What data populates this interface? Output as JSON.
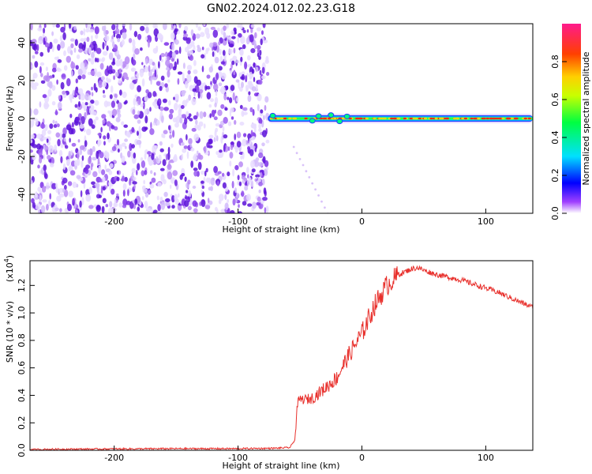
{
  "title": "GN02.2024.012.02.23.G18",
  "chart_data": [
    {
      "type": "heatmap",
      "xlabel": "Height of straight line (km)",
      "ylabel": "Frequency (Hz)",
      "xlim": [
        -268,
        138
      ],
      "ylim": [
        -50,
        50
      ],
      "x_ticks": [
        {
          "v": -200,
          "label": "-200"
        },
        {
          "v": -100,
          "label": "-100"
        },
        {
          "v": 0,
          "label": "0"
        },
        {
          "v": 100,
          "label": "100"
        }
      ],
      "y_ticks": [
        {
          "v": 40,
          "label": "40"
        },
        {
          "v": 20,
          "label": "20"
        },
        {
          "v": 0,
          "label": "0"
        },
        {
          "v": -20,
          "label": "-20"
        },
        {
          "v": -40,
          "label": "-40"
        }
      ],
      "noise_region_x": [
        -268,
        -76
      ],
      "signal_band": {
        "x_start": -76,
        "x_end": 138,
        "frequency": 0
      },
      "colorbar": {
        "label": "Normalized spectral amplitude",
        "range": [
          0,
          1
        ],
        "ticks": [
          {
            "v": 0.0,
            "label": "0.0"
          },
          {
            "v": 0.2,
            "label": "0.2"
          },
          {
            "v": 0.4,
            "label": "0.4"
          },
          {
            "v": 0.6,
            "label": "0.6"
          },
          {
            "v": 0.8,
            "label": "0.8"
          }
        ],
        "colors": [
          "#ffffff",
          "#8a2be2",
          "#0000ff",
          "#00ffff",
          "#00ff00",
          "#ffff00",
          "#ff8000",
          "#ff0000",
          "#ff0080"
        ]
      }
    },
    {
      "type": "line",
      "xlabel": "Height of straight line (km)",
      "ylabel": "SNR (10 * v/v)",
      "multiplier_label": "(x10",
      "multiplier_exp": "4",
      "xlim": [
        -268,
        138
      ],
      "ylim": [
        0,
        1.38
      ],
      "color": "#e8302c",
      "x_ticks": [
        {
          "v": -200,
          "label": "-200"
        },
        {
          "v": -100,
          "label": "-100"
        },
        {
          "v": 0,
          "label": "0"
        },
        {
          "v": 100,
          "label": "100"
        }
      ],
      "y_ticks": [
        {
          "v": 0.0,
          "label": "0.0"
        },
        {
          "v": 0.2,
          "label": "0.2"
        },
        {
          "v": 0.4,
          "label": "0.4"
        },
        {
          "v": 0.6,
          "label": "0.6"
        },
        {
          "v": 0.8,
          "label": "0.8"
        },
        {
          "v": 1.0,
          "label": "1.0"
        },
        {
          "v": 1.2,
          "label": "1.2"
        }
      ],
      "series": [
        {
          "x": [
            -268,
            -250,
            -200,
            -150,
            -100,
            -70,
            -58,
            -54,
            -52,
            -50,
            -45,
            -40,
            -30,
            -20,
            -15,
            -10,
            0,
            10,
            20,
            30,
            40,
            45,
            50,
            60,
            70,
            80,
            90,
            100,
            110,
            120,
            130,
            138
          ],
          "y": [
            0.005,
            0.008,
            0.01,
            0.012,
            0.012,
            0.015,
            0.02,
            0.08,
            0.34,
            0.37,
            0.37,
            0.38,
            0.45,
            0.53,
            0.62,
            0.7,
            0.85,
            1.05,
            1.2,
            1.28,
            1.32,
            1.33,
            1.31,
            1.28,
            1.26,
            1.24,
            1.21,
            1.18,
            1.15,
            1.11,
            1.07,
            1.04
          ]
        }
      ]
    }
  ]
}
